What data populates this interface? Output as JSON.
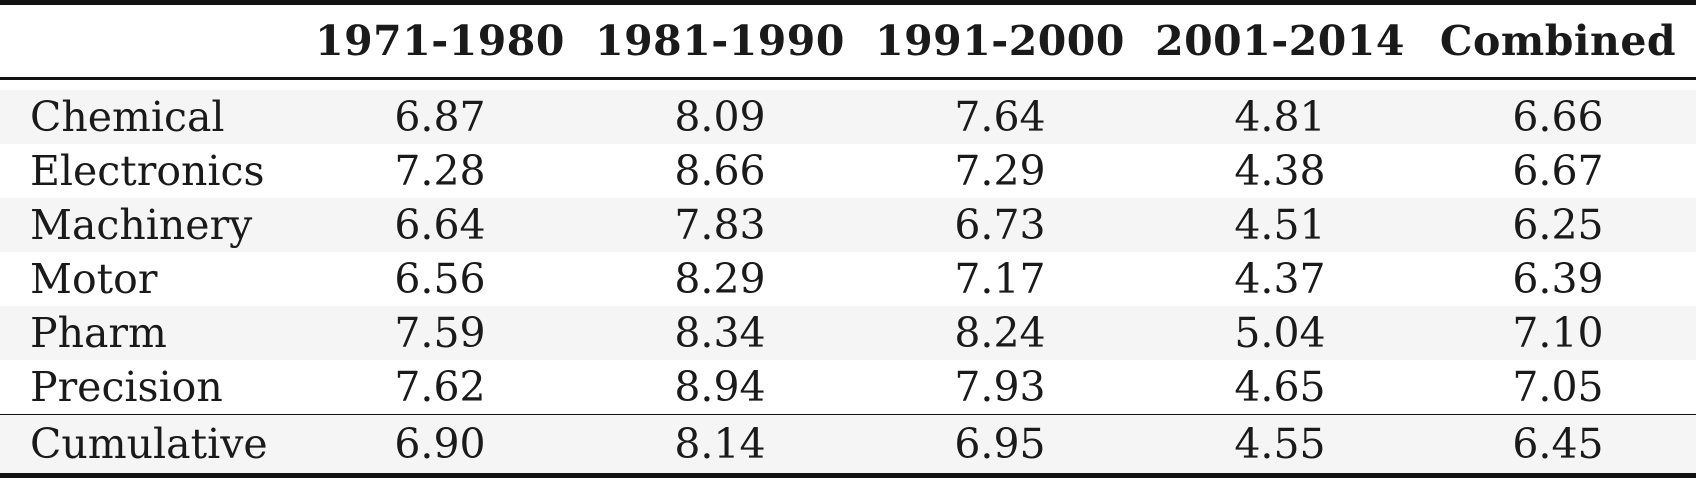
{
  "table": {
    "headers": [
      "",
      "1971-1980",
      "1981-1990",
      "1991-2000",
      "2001-2014",
      "Combined"
    ],
    "rows": [
      {
        "label": "Chemical",
        "values": [
          "6.87",
          "8.09",
          "7.64",
          "4.81",
          "6.66"
        ]
      },
      {
        "label": "Electronics",
        "values": [
          "7.28",
          "8.66",
          "7.29",
          "4.38",
          "6.67"
        ]
      },
      {
        "label": "Machinery",
        "values": [
          "6.64",
          "7.83",
          "6.73",
          "4.51",
          "6.25"
        ]
      },
      {
        "label": "Motor",
        "values": [
          "6.56",
          "8.29",
          "7.17",
          "4.37",
          "6.39"
        ]
      },
      {
        "label": "Pharm",
        "values": [
          "7.59",
          "8.34",
          "8.24",
          "5.04",
          "7.10"
        ]
      },
      {
        "label": "Precision",
        "values": [
          "7.62",
          "8.94",
          "7.93",
          "4.65",
          "7.05"
        ]
      }
    ],
    "total": {
      "label": "Cumulative",
      "values": [
        "6.90",
        "8.14",
        "6.95",
        "4.55",
        "6.45"
      ]
    }
  }
}
